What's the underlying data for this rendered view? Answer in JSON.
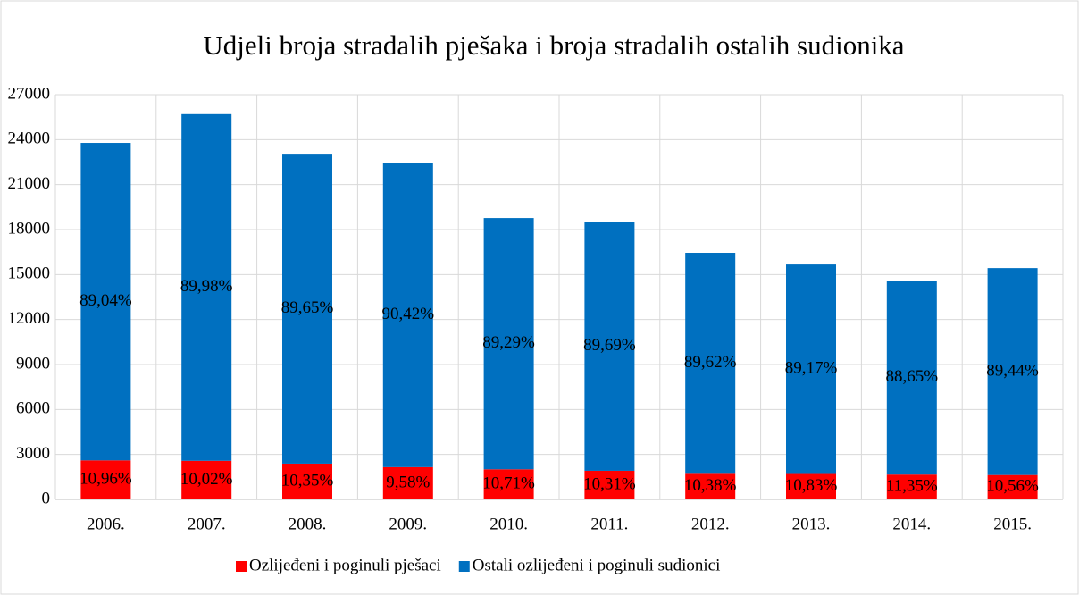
{
  "chart_data": {
    "type": "stacked_bar",
    "title": "Udjeli broja stradalih pješaka i broja stradalih ostalih sudionika",
    "categories": [
      "2006.",
      "2007.",
      "2008.",
      "2009.",
      "2010.",
      "2011.",
      "2012.",
      "2013.",
      "2014.",
      "2015."
    ],
    "series": [
      {
        "name": "Ozlijeđeni i poginuli pješaci",
        "color": "#ff0000",
        "values": [
          2606,
          2575,
          2387,
          2153,
          2010,
          1910,
          1708,
          1697,
          1657,
          1629
        ],
        "labels": [
          "10,96%",
          "10,02%",
          "10,35%",
          "9,58%",
          "10,71%",
          "10,31%",
          "10,38%",
          "10,83%",
          "11,35%",
          "10,56%"
        ]
      },
      {
        "name": "Ostali ozlijeđeni i poginuli sudionici",
        "color": "#0070c0",
        "values": [
          21174,
          23125,
          20673,
          20317,
          16760,
          16620,
          14742,
          13973,
          12943,
          13801
        ],
        "labels": [
          "89,04%",
          "89,98%",
          "89,65%",
          "90,42%",
          "89,29%",
          "89,69%",
          "89,62%",
          "89,17%",
          "88,65%",
          "89,44%"
        ]
      }
    ],
    "ylim": [
      0,
      27000
    ],
    "yticks": [
      0,
      3000,
      6000,
      9000,
      12000,
      15000,
      18000,
      21000,
      24000,
      27000
    ],
    "grid": true,
    "legend": "bottom"
  }
}
